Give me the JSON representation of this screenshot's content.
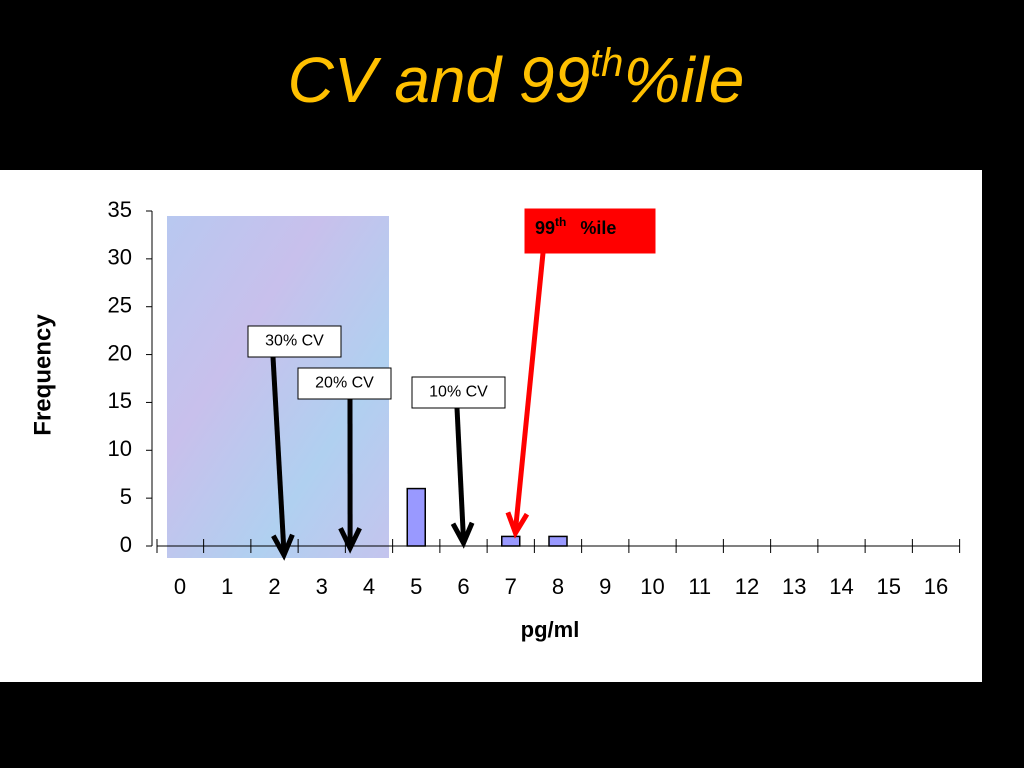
{
  "chart_data": {
    "type": "bar",
    "title_parts": [
      "CV and 99",
      "th",
      "%ile"
    ],
    "categories": [
      "0",
      "1",
      "2",
      "3",
      "4",
      "5",
      "6",
      "7",
      "8",
      "9",
      "10",
      "11",
      "12",
      "13",
      "14",
      "15",
      "16"
    ],
    "values": [
      0,
      0,
      0,
      0,
      0,
      6,
      0,
      1,
      1,
      0,
      0,
      0,
      0,
      0,
      0,
      0,
      0
    ],
    "color": "#9999ff",
    "ylim": [
      0,
      35
    ],
    "yticks": [
      0,
      5,
      10,
      15,
      20,
      25,
      30,
      35
    ],
    "y_label": "Frequency",
    "x_label": "pg/ml",
    "annotations": [
      {
        "text": "30% CV",
        "x": 2.2,
        "color": "#000000"
      },
      {
        "text": "20% CV",
        "x": 3.6,
        "color": "#000000"
      },
      {
        "text": "10% CV",
        "x": 6.0,
        "color": "#000000"
      },
      {
        "text_parts": [
          "99",
          "th",
          "%ile"
        ],
        "x": 7.1,
        "color": "#ff0000"
      }
    ]
  }
}
